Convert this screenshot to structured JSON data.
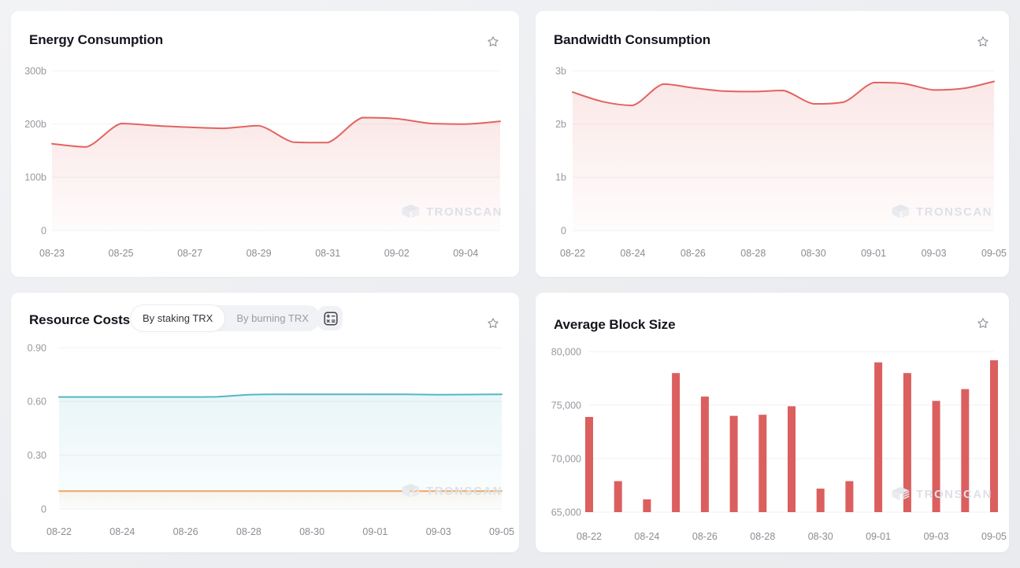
{
  "watermark_label": "TRONSCAN",
  "colors": {
    "line_red": "#e26461",
    "bar_red": "#db5f5e",
    "staking_teal": "#54b8c6",
    "burning_orange": "#eca765",
    "grid": "#f1f2f5",
    "axis_text": "#97999f",
    "title_text": "#15151e",
    "card_bg": "#ffffff",
    "page_bg": "#eceef1"
  },
  "cards": [
    {
      "id": "energy",
      "title": "Energy Consumption"
    },
    {
      "id": "bandwidth",
      "title": "Bandwidth Consumption"
    },
    {
      "id": "resource",
      "title": "Resource Costs",
      "controls": {
        "segments": [
          {
            "label": "By staking TRX",
            "active": true
          },
          {
            "label": "By burning TRX",
            "active": false
          }
        ],
        "calculator_icon": "calculator-icon"
      }
    },
    {
      "id": "blocksize",
      "title": "Average Block Size"
    }
  ],
  "chart_data": [
    {
      "id": "energy",
      "type": "area",
      "title": "Energy Consumption",
      "xlabel": "",
      "ylabel": "",
      "grid": true,
      "legend": false,
      "x": [
        "08-23",
        "08-24",
        "08-25",
        "08-26",
        "08-27",
        "08-28",
        "08-29",
        "08-30",
        "08-31",
        "09-01",
        "09-02",
        "09-03",
        "09-04",
        "09-05"
      ],
      "series": [
        {
          "name": "Energy Consumption",
          "color": "#e26461",
          "fill_from": 0.15,
          "fill_to": 0.02,
          "values": [
            163,
            157,
            201,
            197,
            194,
            192,
            197,
            166,
            165,
            212,
            210,
            201,
            200,
            205
          ]
        }
      ],
      "unit": "b (billions)",
      "ylim": [
        0,
        300
      ],
      "yticks": [
        {
          "value": 0,
          "label": "0"
        },
        {
          "value": 100,
          "label": "100b"
        },
        {
          "value": 200,
          "label": "200b"
        },
        {
          "value": 300,
          "label": "300b"
        }
      ],
      "xtick_indices": [
        0,
        2,
        4,
        6,
        8,
        10,
        12
      ]
    },
    {
      "id": "bandwidth",
      "type": "area",
      "title": "Bandwidth Consumption",
      "xlabel": "",
      "ylabel": "",
      "grid": true,
      "legend": false,
      "x": [
        "08-22",
        "08-23",
        "08-24",
        "08-25",
        "08-26",
        "08-27",
        "08-28",
        "08-29",
        "08-30",
        "08-31",
        "09-01",
        "09-02",
        "09-03",
        "09-04",
        "09-05"
      ],
      "series": [
        {
          "name": "Bandwidth Consumption",
          "color": "#e26461",
          "fill_from": 0.15,
          "fill_to": 0.02,
          "values": [
            2.6,
            2.42,
            2.35,
            2.75,
            2.68,
            2.62,
            2.61,
            2.63,
            2.38,
            2.41,
            2.78,
            2.76,
            2.64,
            2.67,
            2.8
          ]
        }
      ],
      "unit": "b (billions)",
      "ylim": [
        0,
        3
      ],
      "yticks": [
        {
          "value": 0,
          "label": "0"
        },
        {
          "value": 1,
          "label": "1b"
        },
        {
          "value": 2,
          "label": "2b"
        },
        {
          "value": 3,
          "label": "3b"
        }
      ],
      "xtick_indices": [
        0,
        2,
        4,
        6,
        8,
        10,
        12,
        14
      ]
    },
    {
      "id": "resource",
      "type": "area",
      "title": "Resource Costs",
      "xlabel": "",
      "ylabel": "",
      "grid": true,
      "legend": false,
      "x": [
        "08-22",
        "08-23",
        "08-24",
        "08-25",
        "08-26",
        "08-27",
        "08-28",
        "08-29",
        "08-30",
        "08-31",
        "09-01",
        "09-02",
        "09-03",
        "09-04",
        "09-05"
      ],
      "series": [
        {
          "name": "By staking TRX",
          "color": "#54b8c6",
          "fill_from": 0.13,
          "fill_to": 0.02,
          "values": [
            0.625,
            0.625,
            0.625,
            0.625,
            0.625,
            0.626,
            0.638,
            0.64,
            0.64,
            0.64,
            0.64,
            0.64,
            0.638,
            0.639,
            0.64
          ]
        },
        {
          "name": "By burning TRX",
          "color": "#eca765",
          "fill_from": 0.1,
          "fill_to": 0.01,
          "values": [
            0.1,
            0.1,
            0.1,
            0.1,
            0.1,
            0.1,
            0.1,
            0.1,
            0.1,
            0.1,
            0.1,
            0.1,
            0.1,
            0.1,
            0.1
          ]
        }
      ],
      "ylim": [
        0,
        0.9
      ],
      "yticks": [
        {
          "value": 0,
          "label": "0"
        },
        {
          "value": 0.3,
          "label": "0.30"
        },
        {
          "value": 0.6,
          "label": "0.60"
        },
        {
          "value": 0.9,
          "label": "0.90"
        }
      ],
      "xtick_indices": [
        0,
        2,
        4,
        6,
        8,
        10,
        12,
        14
      ]
    },
    {
      "id": "blocksize",
      "type": "bar",
      "title": "Average Block Size",
      "xlabel": "",
      "ylabel": "",
      "grid": true,
      "legend": false,
      "x": [
        "08-22",
        "08-23",
        "08-24",
        "08-25",
        "08-26",
        "08-27",
        "08-28",
        "08-29",
        "08-30",
        "08-31",
        "09-01",
        "09-02",
        "09-03",
        "09-04",
        "09-05"
      ],
      "series": [
        {
          "name": "Average Block Size",
          "color": "#db5f5e",
          "values": [
            73900,
            67900,
            66200,
            78000,
            75800,
            74000,
            74100,
            74900,
            67200,
            67900,
            79000,
            78000,
            75400,
            76500,
            79200
          ]
        }
      ],
      "ylim": [
        65000,
        80000
      ],
      "yticks": [
        {
          "value": 65000,
          "label": "65,000"
        },
        {
          "value": 70000,
          "label": "70,000"
        },
        {
          "value": 75000,
          "label": "75,000"
        },
        {
          "value": 80000,
          "label": "80,000"
        }
      ],
      "xtick_indices": [
        0,
        2,
        4,
        6,
        8,
        10,
        12,
        14
      ]
    }
  ]
}
